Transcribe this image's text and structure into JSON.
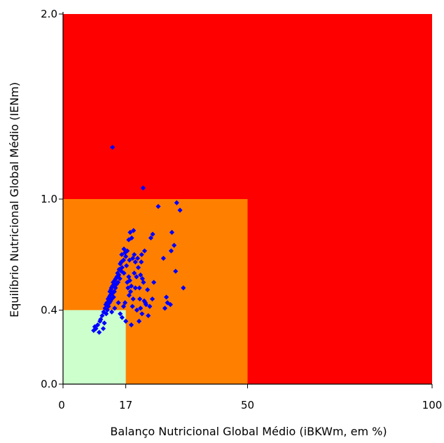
{
  "chart_data": {
    "type": "scatter",
    "xlabel": "Balanço Nutricional Global Médio (iBKWm, em %)",
    "ylabel": "Equilíbrio Nutricional Global Médio (IENm)",
    "xlim": [
      0,
      100
    ],
    "ylim": [
      0,
      2.0
    ],
    "x_tick_labels": [
      "0",
      "17",
      "50",
      "100"
    ],
    "y_tick_labels": [
      "0.0",
      "0.4",
      "1.0",
      "2.0"
    ],
    "regions": [
      {
        "x": [
          0,
          100
        ],
        "y": [
          0,
          2.0
        ],
        "color": "#FF0000"
      },
      {
        "x": [
          0,
          50
        ],
        "y": [
          0,
          1.0
        ],
        "color": "#FF8000"
      },
      {
        "x": [
          0,
          17
        ],
        "y": [
          0,
          0.4
        ],
        "color": "#CCFFCC"
      }
    ],
    "series": [
      {
        "color": "#0000FF",
        "points": [
          [
            13.4,
            1.28
          ],
          [
            21.7,
            1.06
          ],
          [
            25.8,
            0.96
          ],
          [
            30.8,
            0.98
          ],
          [
            31.7,
            0.94
          ],
          [
            29.5,
            0.82
          ],
          [
            30.1,
            0.75
          ],
          [
            24.3,
            0.81
          ],
          [
            23.8,
            0.79
          ],
          [
            19.1,
            0.83
          ],
          [
            18.2,
            0.82
          ],
          [
            18.6,
            0.79
          ],
          [
            17.8,
            0.78
          ],
          [
            16.5,
            0.73
          ],
          [
            17.4,
            0.72
          ],
          [
            16.8,
            0.71
          ],
          [
            17.0,
            0.69
          ],
          [
            15.9,
            0.7
          ],
          [
            22.1,
            0.72
          ],
          [
            21.3,
            0.7
          ],
          [
            20.2,
            0.68
          ],
          [
            21.2,
            0.66
          ],
          [
            19.6,
            0.66
          ],
          [
            16.4,
            0.67
          ],
          [
            15.8,
            0.66
          ],
          [
            15.5,
            0.65
          ],
          [
            17.2,
            0.64
          ],
          [
            16.0,
            0.63
          ],
          [
            15.2,
            0.62
          ],
          [
            15.8,
            0.61
          ],
          [
            14.8,
            0.6
          ],
          [
            16.5,
            0.6
          ],
          [
            15.1,
            0.59
          ],
          [
            14.6,
            0.58
          ],
          [
            14.3,
            0.57
          ],
          [
            15.4,
            0.57
          ],
          [
            14.0,
            0.56
          ],
          [
            13.6,
            0.55
          ],
          [
            14.9,
            0.55
          ],
          [
            13.8,
            0.54
          ],
          [
            14.5,
            0.54
          ],
          [
            13.4,
            0.53
          ],
          [
            14.2,
            0.52
          ],
          [
            13.1,
            0.52
          ],
          [
            13.0,
            0.51
          ],
          [
            13.9,
            0.5
          ],
          [
            12.7,
            0.5
          ],
          [
            13.4,
            0.49
          ],
          [
            12.8,
            0.48
          ],
          [
            13.7,
            0.47
          ],
          [
            12.5,
            0.47
          ],
          [
            13.2,
            0.46
          ],
          [
            12.2,
            0.46
          ],
          [
            12.9,
            0.45
          ],
          [
            11.9,
            0.44
          ],
          [
            12.6,
            0.44
          ],
          [
            11.6,
            0.43
          ],
          [
            12.3,
            0.42
          ],
          [
            11.4,
            0.41
          ],
          [
            12.0,
            0.4
          ],
          [
            11.0,
            0.39
          ],
          [
            11.7,
            0.38
          ],
          [
            10.6,
            0.37
          ],
          [
            10.0,
            0.34
          ],
          [
            9.4,
            0.32
          ],
          [
            8.9,
            0.3
          ],
          [
            10.9,
            0.3
          ],
          [
            9.8,
            0.28
          ],
          [
            8.3,
            0.29
          ],
          [
            11.2,
            0.33
          ],
          [
            8.6,
            0.31
          ],
          [
            10.2,
            0.35
          ],
          [
            17.8,
            0.58
          ],
          [
            18.1,
            0.56
          ],
          [
            17.4,
            0.55
          ],
          [
            18.5,
            0.53
          ],
          [
            17.6,
            0.52
          ],
          [
            19.3,
            0.6
          ],
          [
            19.9,
            0.58
          ],
          [
            21.0,
            0.59
          ],
          [
            20.4,
            0.63
          ],
          [
            21.5,
            0.57
          ],
          [
            18.3,
            0.5
          ],
          [
            17.9,
            0.48
          ],
          [
            19.0,
            0.46
          ],
          [
            20.8,
            0.46
          ],
          [
            22.0,
            0.45
          ],
          [
            22.5,
            0.43
          ],
          [
            21.0,
            0.41
          ],
          [
            20.0,
            0.4
          ],
          [
            22.3,
            0.44
          ],
          [
            24.2,
            0.46
          ],
          [
            27.2,
            0.68
          ],
          [
            29.3,
            0.72
          ],
          [
            30.5,
            0.61
          ],
          [
            32.6,
            0.52
          ],
          [
            28.0,
            0.47
          ],
          [
            29.1,
            0.43
          ],
          [
            28.3,
            0.44
          ],
          [
            27.6,
            0.41
          ],
          [
            23.5,
            0.42
          ],
          [
            23.1,
            0.37
          ],
          [
            21.4,
            0.38
          ],
          [
            20.6,
            0.34
          ],
          [
            18.5,
            0.32
          ],
          [
            17.0,
            0.34
          ],
          [
            16.0,
            0.36
          ],
          [
            15.5,
            0.38
          ],
          [
            16.4,
            0.42
          ],
          [
            15.0,
            0.44
          ],
          [
            14.0,
            0.41
          ],
          [
            13.2,
            0.39
          ],
          [
            16.8,
            0.44
          ],
          [
            18.8,
            0.42
          ],
          [
            19.6,
            0.52
          ],
          [
            20.7,
            0.52
          ],
          [
            22.9,
            0.51
          ],
          [
            24.6,
            0.55
          ],
          [
            21.8,
            0.55
          ],
          [
            18.9,
            0.68
          ],
          [
            19.3,
            0.7
          ],
          [
            18.0,
            0.67
          ]
        ]
      }
    ]
  }
}
